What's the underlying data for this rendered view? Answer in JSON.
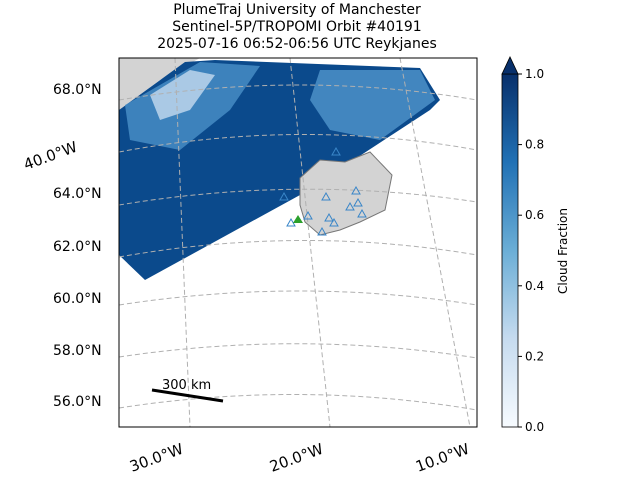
{
  "header": {
    "title_lines": [
      "PlumeTraj    University of Manchester",
      "Sentinel-5P/TROPOMI Orbit #40191",
      "2025-07-16   06:52-06:56 UTC   Reykjanes"
    ]
  },
  "map": {
    "lat_labels": [
      "68.0°N",
      "64.0°N",
      "62.0°N",
      "60.0°N",
      "58.0°N",
      "56.0°N"
    ],
    "lon_labels": [
      "40.0°W",
      "30.0°W",
      "20.0°W",
      "10.0°W"
    ],
    "scale_bar": "300 km"
  },
  "colorbar": {
    "label": "Cloud Fraction",
    "lim": [
      0,
      1
    ],
    "ticks": [
      {
        "value": 0,
        "label": "0.0"
      },
      {
        "value": 0.2,
        "label": "0.2"
      },
      {
        "value": 0.4,
        "label": "0.4"
      },
      {
        "value": 0.6,
        "label": "0.6"
      },
      {
        "value": 0.8,
        "label": "0.8"
      },
      {
        "value": 1,
        "label": "1.0"
      }
    ]
  }
}
